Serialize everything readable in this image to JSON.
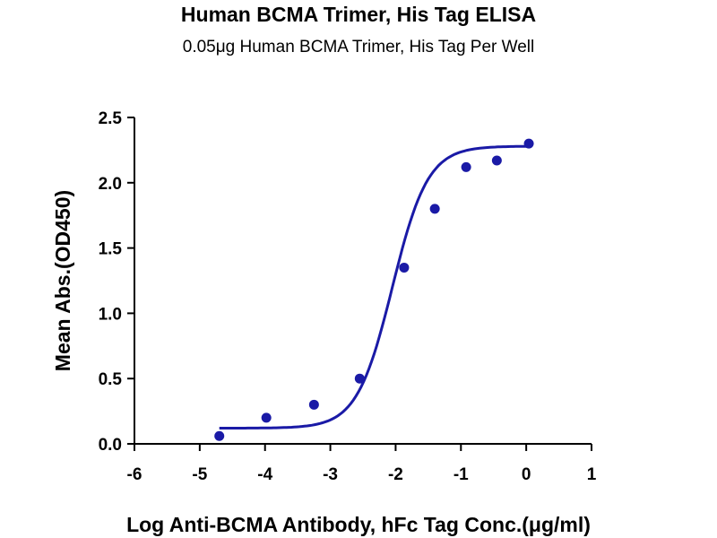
{
  "chart_data": {
    "type": "scatter",
    "title": "Human BCMA Trimer, His Tag ELISA",
    "subtitle": "0.05μg Human BCMA Trimer, His Tag Per Well",
    "xlabel": "Log Anti-BCMA Antibody, hFc Tag Conc.(μg/ml)",
    "ylabel": "Mean Abs.(OD450)",
    "xlim": [
      -6,
      1
    ],
    "ylim": [
      0,
      2.5
    ],
    "x_ticks": [
      -6,
      -5,
      -4,
      -3,
      -2,
      -1,
      0,
      1
    ],
    "x_tick_labels": [
      "-6",
      "-5",
      "-4",
      "-3",
      "-2",
      "-1",
      "0",
      "1"
    ],
    "y_ticks": [
      0,
      0.5,
      1.0,
      1.5,
      2.0,
      2.5
    ],
    "y_tick_labels": [
      "0.0",
      "0.5",
      "1.0",
      "1.5",
      "2.0",
      "2.5"
    ],
    "grid": false,
    "series": [
      {
        "color": "#1a1aa6",
        "points": [
          {
            "x": -4.7,
            "y": 0.06
          },
          {
            "x": -3.98,
            "y": 0.2
          },
          {
            "x": -3.25,
            "y": 0.3
          },
          {
            "x": -2.55,
            "y": 0.5
          },
          {
            "x": -1.87,
            "y": 1.35
          },
          {
            "x": -1.4,
            "y": 1.8
          },
          {
            "x": -0.92,
            "y": 2.12
          },
          {
            "x": -0.45,
            "y": 2.17
          },
          {
            "x": 0.04,
            "y": 2.3
          }
        ],
        "fit": {
          "model": "4PL",
          "bottom": 0.12,
          "top": 2.28,
          "logEC50": -2.05,
          "hill": 1.6,
          "x_range": [
            -4.7,
            0.04
          ]
        }
      }
    ]
  }
}
